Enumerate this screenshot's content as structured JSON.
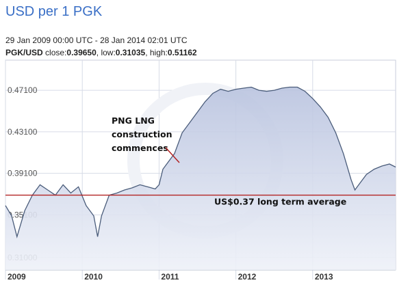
{
  "header": {
    "title": "USD per 1 PGK",
    "date_range": "29 Jan 2009 00:00 UTC - 28 Jan 2014 02:01 UTC",
    "pair": "PGK/USD",
    "close_label": "close:",
    "close_value": "0.39650",
    "low_label": "low:",
    "low_value": "0.31035",
    "high_label": "high:",
    "high_value": "0.51162"
  },
  "colors": {
    "accent": "#3a6fc6",
    "line": "#4a5c7a",
    "area_top": "#b9c3df",
    "area_bottom": "#eef1f8",
    "average_line": "#b22222",
    "grid": "#d6dbe6"
  },
  "chart_data": {
    "type": "area",
    "title": "USD per 1 PGK",
    "xlabel": "",
    "ylabel": "",
    "x_ticks": [
      "2009",
      "2010",
      "2011",
      "2012",
      "2013"
    ],
    "y_ticks": [
      0.31,
      0.351,
      0.391,
      0.431,
      0.471
    ],
    "y_tick_labels": [
      "0.31000",
      "0.35100",
      "0.39100",
      "0.43100",
      "0.47100"
    ],
    "ylim": [
      0.298,
      0.5
    ],
    "xlim": [
      2009.0,
      2014.08
    ],
    "grid": true,
    "series": [
      {
        "x": [
          2009.0,
          2009.08,
          2009.15,
          2009.25,
          2009.35,
          2009.45,
          2009.55,
          2009.65,
          2009.75,
          2009.85,
          2009.95,
          2010.05,
          2010.15,
          2010.2,
          2010.25,
          2010.35,
          2010.45,
          2010.55,
          2010.65,
          2010.75,
          2010.85,
          2010.95,
          2011.0,
          2011.05,
          2011.1,
          2011.2,
          2011.3,
          2011.4,
          2011.5,
          2011.6,
          2011.7,
          2011.8,
          2011.9,
          2012.0,
          2012.1,
          2012.2,
          2012.3,
          2012.4,
          2012.5,
          2012.6,
          2012.7,
          2012.8,
          2012.9,
          2013.0,
          2013.1,
          2013.2,
          2013.3,
          2013.4,
          2013.5,
          2013.55,
          2013.6,
          2013.7,
          2013.8,
          2013.9,
          2014.0,
          2014.08
        ],
        "values": [
          0.36,
          0.35,
          0.33,
          0.355,
          0.37,
          0.38,
          0.375,
          0.37,
          0.38,
          0.372,
          0.378,
          0.36,
          0.35,
          0.33,
          0.35,
          0.37,
          0.372,
          0.375,
          0.377,
          0.38,
          0.378,
          0.376,
          0.38,
          0.395,
          0.4,
          0.41,
          0.43,
          0.44,
          0.45,
          0.46,
          0.468,
          0.472,
          0.47,
          0.472,
          0.473,
          0.474,
          0.471,
          0.47,
          0.471,
          0.473,
          0.474,
          0.474,
          0.47,
          0.463,
          0.455,
          0.445,
          0.43,
          0.41,
          0.385,
          0.375,
          0.38,
          0.39,
          0.395,
          0.398,
          0.4,
          0.397
        ]
      }
    ],
    "reference_line": {
      "value": 0.37,
      "label": "US$0.37 long term average"
    },
    "annotations": [
      {
        "lines": [
          "PNG LNG",
          "construction",
          "commences"
        ],
        "x": 2011.05,
        "y": 0.395
      }
    ]
  }
}
